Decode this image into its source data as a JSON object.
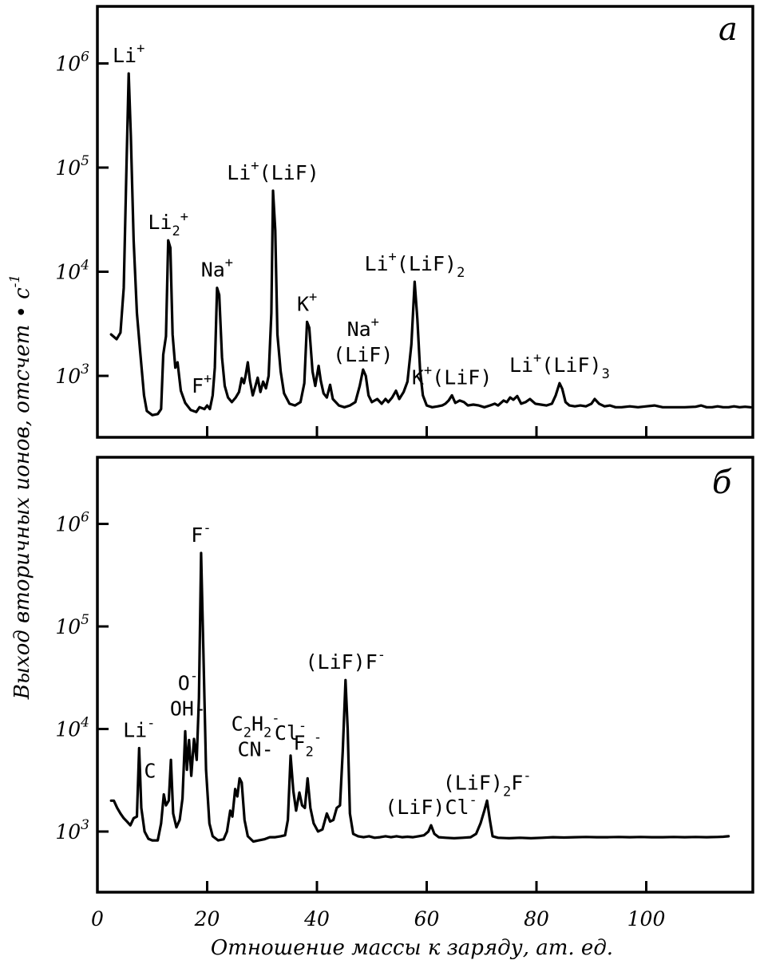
{
  "y_axis_label": "Выход вторичных ионов, отсчет • c",
  "y_axis_label_exponent": "-1",
  "x_axis_label": "Отношение массы к заряду, ат. ед.",
  "x_ticks": [
    "0",
    "20",
    "40",
    "60",
    "80",
    "100"
  ],
  "chart_data": [
    {
      "type": "line",
      "panel": "а",
      "y_scale": "log",
      "ylim": [
        200,
        3000000
      ],
      "xlim": [
        0,
        120
      ],
      "y_tick_labels": [
        {
          "value": 1000,
          "base": "10",
          "exp": "3"
        },
        {
          "value": 10000,
          "base": "10",
          "exp": "4"
        },
        {
          "value": 100000,
          "base": "10",
          "exp": "5"
        },
        {
          "value": 1000000,
          "base": "10",
          "exp": "6"
        }
      ],
      "points": [
        [
          2.5,
          2500
        ],
        [
          3.5,
          2250
        ],
        [
          4.2,
          2600
        ],
        [
          4.8,
          7000
        ],
        [
          5.3,
          100000
        ],
        [
          5.7,
          800000
        ],
        [
          6.1,
          200000
        ],
        [
          6.6,
          20000
        ],
        [
          7.2,
          4000
        ],
        [
          7.8,
          1700
        ],
        [
          8.5,
          650
        ],
        [
          9,
          460
        ],
        [
          10,
          420
        ],
        [
          11,
          430
        ],
        [
          11.6,
          480
        ],
        [
          12,
          1600
        ],
        [
          12.5,
          2400
        ],
        [
          12.9,
          20000
        ],
        [
          13.3,
          17000
        ],
        [
          13.7,
          2500
        ],
        [
          14.2,
          1200
        ],
        [
          14.6,
          1350
        ],
        [
          15.2,
          720
        ],
        [
          16,
          550
        ],
        [
          17,
          470
        ],
        [
          18,
          450
        ],
        [
          18.6,
          500
        ],
        [
          19.5,
          480
        ],
        [
          20,
          520
        ],
        [
          20.5,
          480
        ],
        [
          21,
          650
        ],
        [
          21.4,
          1200
        ],
        [
          21.8,
          7000
        ],
        [
          22.2,
          6000
        ],
        [
          22.7,
          1500
        ],
        [
          23.2,
          800
        ],
        [
          23.8,
          620
        ],
        [
          24.5,
          560
        ],
        [
          25.2,
          620
        ],
        [
          25.8,
          700
        ],
        [
          26.3,
          950
        ],
        [
          26.7,
          850
        ],
        [
          27,
          1000
        ],
        [
          27.4,
          1350
        ],
        [
          27.8,
          900
        ],
        [
          28.3,
          650
        ],
        [
          28.8,
          800
        ],
        [
          29.2,
          960
        ],
        [
          29.7,
          700
        ],
        [
          30.2,
          880
        ],
        [
          30.7,
          760
        ],
        [
          31.2,
          1000
        ],
        [
          31.7,
          4000
        ],
        [
          32,
          60000
        ],
        [
          32.4,
          25000
        ],
        [
          32.8,
          2500
        ],
        [
          33.4,
          1100
        ],
        [
          34,
          680
        ],
        [
          35,
          540
        ],
        [
          36,
          520
        ],
        [
          37,
          560
        ],
        [
          37.7,
          850
        ],
        [
          38.2,
          3300
        ],
        [
          38.6,
          2900
        ],
        [
          39.2,
          1100
        ],
        [
          39.7,
          800
        ],
        [
          40.3,
          1250
        ],
        [
          40.7,
          900
        ],
        [
          41.2,
          680
        ],
        [
          41.8,
          620
        ],
        [
          42.4,
          820
        ],
        [
          42.9,
          600
        ],
        [
          44,
          520
        ],
        [
          45,
          500
        ],
        [
          46,
          520
        ],
        [
          47,
          560
        ],
        [
          47.8,
          800
        ],
        [
          48.4,
          1150
        ],
        [
          48.9,
          1000
        ],
        [
          49.4,
          650
        ],
        [
          50,
          560
        ],
        [
          51,
          600
        ],
        [
          51.8,
          540
        ],
        [
          52.5,
          600
        ],
        [
          53,
          560
        ],
        [
          53.7,
          620
        ],
        [
          54.4,
          720
        ],
        [
          55,
          600
        ],
        [
          55.8,
          700
        ],
        [
          56.5,
          880
        ],
        [
          57.2,
          2000
        ],
        [
          57.8,
          8000
        ],
        [
          58.3,
          3500
        ],
        [
          58.8,
          1100
        ],
        [
          59.3,
          650
        ],
        [
          60,
          520
        ],
        [
          61,
          500
        ],
        [
          62,
          510
        ],
        [
          62.8,
          520
        ],
        [
          63.4,
          540
        ],
        [
          64,
          580
        ],
        [
          64.6,
          650
        ],
        [
          65.2,
          550
        ],
        [
          66,
          580
        ],
        [
          66.8,
          560
        ],
        [
          67.5,
          520
        ],
        [
          68.5,
          530
        ],
        [
          69.5,
          520
        ],
        [
          70.5,
          500
        ],
        [
          71.5,
          520
        ],
        [
          72.4,
          540
        ],
        [
          73,
          520
        ],
        [
          74,
          580
        ],
        [
          74.6,
          560
        ],
        [
          75.2,
          620
        ],
        [
          75.8,
          590
        ],
        [
          76.5,
          640
        ],
        [
          77.2,
          540
        ],
        [
          78,
          560
        ],
        [
          78.8,
          600
        ],
        [
          79.8,
          540
        ],
        [
          80.8,
          530
        ],
        [
          81.8,
          520
        ],
        [
          82.8,
          540
        ],
        [
          83.5,
          650
        ],
        [
          84.2,
          850
        ],
        [
          84.7,
          750
        ],
        [
          85.3,
          560
        ],
        [
          86,
          520
        ],
        [
          87,
          510
        ],
        [
          88,
          520
        ],
        [
          89,
          510
        ],
        [
          90,
          540
        ],
        [
          90.6,
          600
        ],
        [
          91.4,
          540
        ],
        [
          92.4,
          510
        ],
        [
          93.4,
          520
        ],
        [
          94.4,
          500
        ],
        [
          95.5,
          500
        ],
        [
          97,
          510
        ],
        [
          98.5,
          500
        ],
        [
          100,
          510
        ],
        [
          101.5,
          520
        ],
        [
          103,
          500
        ],
        [
          105,
          500
        ],
        [
          107,
          500
        ],
        [
          109,
          505
        ],
        [
          110,
          520
        ],
        [
          111,
          500
        ],
        [
          112,
          500
        ],
        [
          113,
          510
        ],
        [
          114,
          500
        ],
        [
          115,
          500
        ],
        [
          116,
          510
        ],
        [
          117,
          500
        ],
        [
          118,
          505
        ],
        [
          119,
          500
        ]
      ],
      "peak_labels": [
        {
          "x": 5.7,
          "y": 800000,
          "text": "Li",
          "sup": "+"
        },
        {
          "x": 12.9,
          "y": 20000,
          "text": "Li",
          "sub": "2",
          "sup": "+"
        },
        {
          "x": 21.8,
          "y": 7000,
          "text": "Na",
          "sup": "+"
        },
        {
          "x": 19,
          "y": 520,
          "text": "F",
          "sup": "+"
        },
        {
          "x": 32,
          "y": 60000,
          "text": "Li",
          "sup": "+",
          "suffix": "(LiF)"
        },
        {
          "x": 38.2,
          "y": 3300,
          "text": "K",
          "sup": "+"
        },
        {
          "x": 48.4,
          "y": 1150,
          "text": "Na",
          "sup": "+",
          "line2": "(LiF)"
        },
        {
          "x": 57.8,
          "y": 8000,
          "text": "Li",
          "sup": "+",
          "suffix": "(LiF)",
          "suffix_sub": "2"
        },
        {
          "x": 64.6,
          "y": 650,
          "text": "K",
          "sup": "+",
          "suffix": "(LiF)"
        },
        {
          "x": 84.2,
          "y": 850,
          "text": "Li",
          "sup": "+",
          "suffix": "(LiF)",
          "suffix_sub": "3"
        }
      ]
    },
    {
      "type": "line",
      "panel": "б",
      "y_scale": "log",
      "ylim": [
        400,
        3500000
      ],
      "xlim": [
        0,
        120
      ],
      "y_tick_labels": [
        {
          "value": 1000,
          "base": "10",
          "exp": "3"
        },
        {
          "value": 10000,
          "base": "10",
          "exp": "4"
        },
        {
          "value": 100000,
          "base": "10",
          "exp": "5"
        },
        {
          "value": 1000000,
          "base": "10",
          "exp": "6"
        }
      ],
      "points": [
        [
          2.5,
          2000
        ],
        [
          3,
          2000
        ],
        [
          3.6,
          1700
        ],
        [
          4.2,
          1500
        ],
        [
          4.8,
          1350
        ],
        [
          5.4,
          1250
        ],
        [
          6,
          1150
        ],
        [
          6.6,
          1350
        ],
        [
          7.2,
          1400
        ],
        [
          7.6,
          6500
        ],
        [
          8,
          1700
        ],
        [
          8.6,
          1000
        ],
        [
          9.3,
          850
        ],
        [
          10,
          820
        ],
        [
          11,
          820
        ],
        [
          11.6,
          1200
        ],
        [
          12.1,
          2300
        ],
        [
          12.5,
          1800
        ],
        [
          13,
          2000
        ],
        [
          13.4,
          5000
        ],
        [
          13.8,
          1500
        ],
        [
          14.4,
          1100
        ],
        [
          15,
          1300
        ],
        [
          15.5,
          2100
        ],
        [
          16,
          9500
        ],
        [
          16.3,
          4000
        ],
        [
          16.7,
          7800
        ],
        [
          17.1,
          3500
        ],
        [
          17.6,
          8000
        ],
        [
          18.1,
          5000
        ],
        [
          18.5,
          20000
        ],
        [
          18.9,
          520000
        ],
        [
          19.3,
          60000
        ],
        [
          19.8,
          4000
        ],
        [
          20.4,
          1200
        ],
        [
          21,
          900
        ],
        [
          22,
          820
        ],
        [
          23,
          840
        ],
        [
          23.6,
          1000
        ],
        [
          24.2,
          1600
        ],
        [
          24.6,
          1400
        ],
        [
          25.1,
          2600
        ],
        [
          25.5,
          2200
        ],
        [
          25.9,
          3300
        ],
        [
          26.3,
          3000
        ],
        [
          26.8,
          1300
        ],
        [
          27.4,
          900
        ],
        [
          28.4,
          800
        ],
        [
          29.4,
          820
        ],
        [
          30.4,
          840
        ],
        [
          31.4,
          880
        ],
        [
          32.4,
          880
        ],
        [
          33.4,
          900
        ],
        [
          34.2,
          920
        ],
        [
          34.7,
          1300
        ],
        [
          35.2,
          5500
        ],
        [
          35.7,
          2500
        ],
        [
          36.2,
          1600
        ],
        [
          36.8,
          2400
        ],
        [
          37.3,
          1800
        ],
        [
          37.8,
          1700
        ],
        [
          38.3,
          3300
        ],
        [
          38.8,
          1700
        ],
        [
          39.4,
          1200
        ],
        [
          40.2,
          1000
        ],
        [
          41,
          1050
        ],
        [
          41.8,
          1500
        ],
        [
          42.4,
          1250
        ],
        [
          43,
          1300
        ],
        [
          43.6,
          1700
        ],
        [
          44.2,
          1800
        ],
        [
          44.7,
          6000
        ],
        [
          45.2,
          30000
        ],
        [
          45.6,
          10000
        ],
        [
          46,
          1500
        ],
        [
          46.6,
          950
        ],
        [
          47.5,
          900
        ],
        [
          48.5,
          880
        ],
        [
          49.5,
          900
        ],
        [
          50.5,
          870
        ],
        [
          51.5,
          880
        ],
        [
          52.5,
          900
        ],
        [
          53.5,
          880
        ],
        [
          54.5,
          900
        ],
        [
          55.5,
          880
        ],
        [
          56.5,
          890
        ],
        [
          57.5,
          880
        ],
        [
          58.5,
          900
        ],
        [
          59.5,
          920
        ],
        [
          60.3,
          1000
        ],
        [
          60.8,
          1150
        ],
        [
          61.4,
          950
        ],
        [
          62.2,
          880
        ],
        [
          63.5,
          870
        ],
        [
          65,
          860
        ],
        [
          66.5,
          870
        ],
        [
          68,
          880
        ],
        [
          69,
          950
        ],
        [
          69.8,
          1200
        ],
        [
          70.5,
          1600
        ],
        [
          71,
          2000
        ],
        [
          71.5,
          1300
        ],
        [
          72,
          900
        ],
        [
          73,
          870
        ],
        [
          75,
          860
        ],
        [
          77,
          870
        ],
        [
          79,
          860
        ],
        [
          81,
          870
        ],
        [
          83,
          880
        ],
        [
          85,
          875
        ],
        [
          87,
          880
        ],
        [
          89,
          885
        ],
        [
          91,
          880
        ],
        [
          93,
          880
        ],
        [
          95,
          885
        ],
        [
          97,
          880
        ],
        [
          99,
          885
        ],
        [
          101,
          880
        ],
        [
          103,
          880
        ],
        [
          105,
          885
        ],
        [
          107,
          880
        ],
        [
          109,
          885
        ],
        [
          111,
          880
        ],
        [
          113,
          885
        ],
        [
          114,
          890
        ],
        [
          115,
          900
        ]
      ],
      "peak_labels": [
        {
          "x": 7.6,
          "y": 6500,
          "text": "Li",
          "sup": "-"
        },
        {
          "x": 9,
          "y": 850,
          "text": "C"
        },
        {
          "x": 16.5,
          "y": 9500,
          "text": "O",
          "sup": "-",
          "line2": "OH-"
        },
        {
          "x": 18.9,
          "y": 520000,
          "text": "F",
          "sup": "-"
        },
        {
          "x": 25.9,
          "y": 3300,
          "text": "C",
          "sub": "2",
          "after": "H",
          "after_sub": "2",
          "after_sup": "-",
          "line2": "CN-"
        },
        {
          "x": 35.2,
          "y": 5500,
          "text": "Cl",
          "sup": "-"
        },
        {
          "x": 38.3,
          "y": 3300,
          "text": "F",
          "sub": "2",
          "sup": "-"
        },
        {
          "x": 45.2,
          "y": 30000,
          "text": "(LiF)F",
          "sup": "-"
        },
        {
          "x": 60.8,
          "y": 1150,
          "text": "(LiF)Cl",
          "sup": "-"
        },
        {
          "x": 71,
          "y": 2000,
          "text": "(LiF)",
          "sub": "2",
          "after": "F",
          "after_sup": "-"
        }
      ]
    }
  ]
}
